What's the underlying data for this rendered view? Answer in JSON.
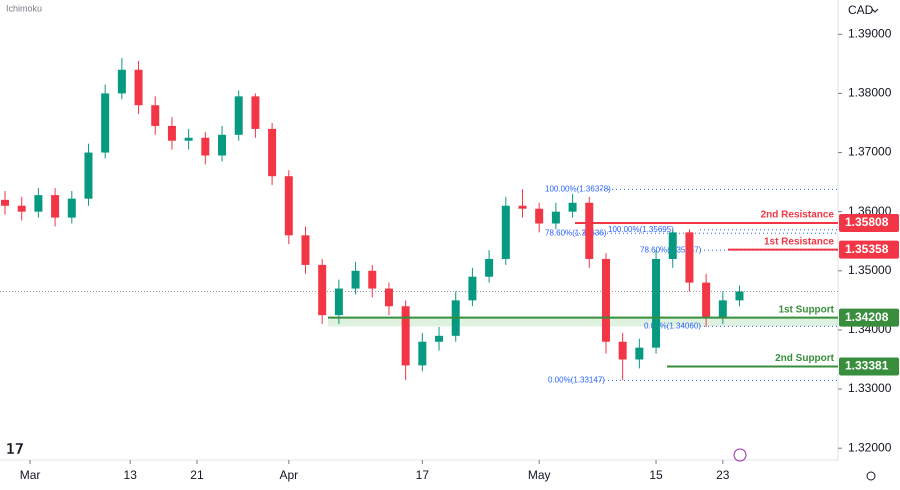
{
  "chart_data": {
    "type": "candlestick",
    "indicator": "Ichimoku",
    "currency": "CAD",
    "up_color": "#089981",
    "down_color": "#f23645",
    "x": [
      -3,
      -1,
      1,
      3,
      5,
      7,
      9,
      11,
      13,
      15,
      17,
      19,
      21,
      23,
      25,
      27,
      29,
      31,
      33,
      35,
      37,
      39,
      41,
      43,
      45,
      47,
      49,
      51,
      53,
      55,
      57,
      59,
      61,
      63,
      65,
      67,
      69,
      71,
      73,
      75,
      77,
      79,
      81,
      83,
      85
    ],
    "open": [
      1.362,
      1.361,
      1.36,
      1.3628,
      1.359,
      1.3622,
      1.37,
      1.38,
      1.384,
      1.378,
      1.3745,
      1.372,
      1.3725,
      1.3695,
      1.373,
      1.3795,
      1.374,
      1.366,
      1.356,
      1.351,
      1.3425,
      1.347,
      1.35,
      1.347,
      1.344,
      1.334,
      1.338,
      1.339,
      1.345,
      1.349,
      1.352,
      1.361,
      1.3605,
      1.358,
      1.36,
      1.3615,
      1.352,
      1.338,
      1.335,
      1.337,
      1.352,
      1.3565,
      1.348,
      1.342,
      1.345
    ],
    "high": [
      1.3635,
      1.3625,
      1.364,
      1.364,
      1.3635,
      1.3715,
      1.3815,
      1.386,
      1.3855,
      1.3795,
      1.376,
      1.374,
      1.3735,
      1.3745,
      1.3805,
      1.38,
      1.375,
      1.367,
      1.3575,
      1.352,
      1.3485,
      1.3515,
      1.351,
      1.348,
      1.345,
      1.3395,
      1.3405,
      1.3465,
      1.3505,
      1.3535,
      1.3625,
      1.3638,
      1.3615,
      1.3615,
      1.363,
      1.3625,
      1.353,
      1.3395,
      1.3385,
      1.3535,
      1.357,
      1.357,
      1.3495,
      1.3465,
      1.3475
    ],
    "low": [
      1.3595,
      1.3585,
      1.359,
      1.3575,
      1.358,
      1.361,
      1.369,
      1.379,
      1.3765,
      1.373,
      1.3705,
      1.3705,
      1.368,
      1.3685,
      1.372,
      1.3725,
      1.3645,
      1.3545,
      1.3495,
      1.341,
      1.341,
      1.346,
      1.3455,
      1.3425,
      1.3315,
      1.333,
      1.3365,
      1.338,
      1.344,
      1.348,
      1.351,
      1.359,
      1.3565,
      1.357,
      1.359,
      1.3505,
      1.336,
      1.3315,
      1.3335,
      1.336,
      1.3505,
      1.3465,
      1.3405,
      1.341,
      1.344
    ],
    "close": [
      1.361,
      1.36,
      1.3628,
      1.359,
      1.3622,
      1.37,
      1.38,
      1.384,
      1.378,
      1.3745,
      1.372,
      1.3725,
      1.3695,
      1.373,
      1.3795,
      1.374,
      1.366,
      1.356,
      1.351,
      1.3425,
      1.347,
      1.35,
      1.347,
      1.344,
      1.334,
      1.338,
      1.339,
      1.345,
      1.349,
      1.352,
      1.361,
      1.3605,
      1.358,
      1.36,
      1.3615,
      1.352,
      1.338,
      1.335,
      1.337,
      1.352,
      1.3565,
      1.348,
      1.342,
      1.345,
      1.3465
    ],
    "xlim": [
      -3.6,
      96.8
    ],
    "xticks": [
      {
        "value": 0,
        "label": "Mar"
      },
      {
        "value": 12,
        "label": "13"
      },
      {
        "value": 20,
        "label": "21"
      },
      {
        "value": 31,
        "label": "Apr"
      },
      {
        "value": 47,
        "label": "17"
      },
      {
        "value": 61,
        "label": "May"
      },
      {
        "value": 75,
        "label": "15"
      },
      {
        "value": 83,
        "label": "23"
      }
    ],
    "ylim": [
      1.318,
      1.3958
    ],
    "yticks": [
      {
        "value": 1.32,
        "label": "1.32000"
      },
      {
        "value": 1.33,
        "label": "1.33000"
      },
      {
        "value": 1.34,
        "label": "1.34000"
      },
      {
        "value": 1.35,
        "label": "1.35000"
      },
      {
        "value": 1.36,
        "label": "1.36000"
      },
      {
        "value": 1.37,
        "label": "1.37000"
      },
      {
        "value": 1.38,
        "label": "1.38000"
      },
      {
        "value": 1.39,
        "label": "1.39000"
      }
    ],
    "grid": false,
    "levels": [
      {
        "name": "2nd Resistance",
        "value": 1.35808,
        "color": "#f23645"
      },
      {
        "name": "1st Resistance",
        "value": 1.35358,
        "color": "#f23645"
      },
      {
        "name": "1st Support",
        "value": 1.34208,
        "color": "#388e3c"
      },
      {
        "name": "2nd Support",
        "value": 1.33381,
        "color": "#388e3c"
      }
    ],
    "fib_levels": [
      {
        "label": "100.00%(1.36378)",
        "value": 1.36378
      },
      {
        "label": "100.00%(1.35695)",
        "value": 1.35695
      },
      {
        "label": "78.60%(1.35636)",
        "value": 1.35636
      },
      {
        "label": "78.60%(1.35347)",
        "value": 1.35347
      },
      {
        "label": "0.00%(1.34060)",
        "value": 1.3406
      },
      {
        "label": "0.00%(1.33147)",
        "value": 1.33147
      }
    ]
  }
}
